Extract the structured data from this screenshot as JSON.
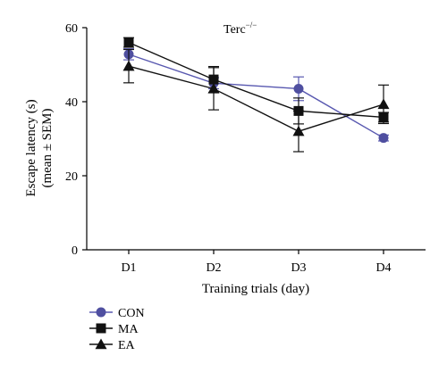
{
  "chart_data": {
    "type": "line",
    "title_base": "Terc",
    "title_sup": "−/−",
    "categories": [
      "D1",
      "D2",
      "D3",
      "D4"
    ],
    "xlabel": "Training trials (day)",
    "ylabel_line1": "Escape latency (s)",
    "ylabel_line2": "(mean ± SEM)",
    "ylim": [
      0,
      60
    ],
    "yticks": [
      0,
      20,
      40,
      60
    ],
    "grid": false,
    "legend_position": "bottom-left",
    "series": [
      {
        "name": "CON",
        "marker": "circle",
        "color": "#4f4fa0",
        "line_color": "#5858b0",
        "values": [
          52.8,
          45.0,
          43.5,
          30.2
        ],
        "err": [
          1.5,
          1.5,
          3.2,
          0.8
        ]
      },
      {
        "name": "MA",
        "marker": "square",
        "color": "#111111",
        "line_color": "#111111",
        "values": [
          56.0,
          46.0,
          37.5,
          35.8
        ],
        "err": [
          1.3,
          3.5,
          3.5,
          1.3
        ]
      },
      {
        "name": "EA",
        "marker": "triangle",
        "color": "#111111",
        "line_color": "#111111",
        "values": [
          49.6,
          43.5,
          32.0,
          39.3
        ],
        "err": [
          4.5,
          5.7,
          5.5,
          5.2
        ]
      }
    ]
  }
}
